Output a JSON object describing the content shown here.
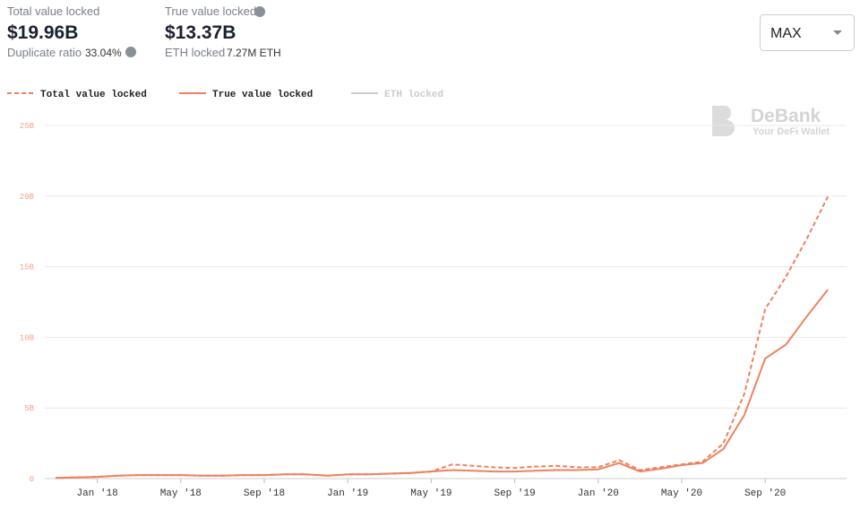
{
  "header": {
    "total_label": "Total value locked",
    "total_value": "$19.96B",
    "dup_label": "Duplicate ratio",
    "dup_value": "33.04%",
    "true_label": "True value locked",
    "true_value": "$13.37B",
    "eth_label": "ETH locked",
    "eth_value": "7.27M ETH",
    "range": "MAX",
    "brand": "DeBank",
    "brand_sub": "Your DeFi Wallet"
  },
  "chart_data": {
    "type": "line",
    "x": [
      "2017-11",
      "2017-12",
      "2018-01",
      "2018-02",
      "2018-03",
      "2018-04",
      "2018-05",
      "2018-06",
      "2018-07",
      "2018-08",
      "2018-09",
      "2018-10",
      "2018-11",
      "2018-12",
      "2019-01",
      "2019-02",
      "2019-03",
      "2019-04",
      "2019-05",
      "2019-06",
      "2019-07",
      "2019-08",
      "2019-09",
      "2019-10",
      "2019-11",
      "2019-12",
      "2020-01",
      "2020-02",
      "2020-03",
      "2020-04",
      "2020-05",
      "2020-06",
      "2020-07",
      "2020-08",
      "2020-09",
      "2020-10",
      "2020-11",
      "2020-12"
    ],
    "series": [
      {
        "name": "Total value locked",
        "color": "#ef8160",
        "dashed": true,
        "values": [
          0.05,
          0.08,
          0.12,
          0.2,
          0.25,
          0.25,
          0.25,
          0.2,
          0.2,
          0.25,
          0.25,
          0.3,
          0.3,
          0.2,
          0.3,
          0.3,
          0.35,
          0.4,
          0.5,
          1.0,
          0.9,
          0.8,
          0.75,
          0.85,
          0.9,
          0.8,
          0.8,
          1.3,
          0.6,
          0.8,
          1.0,
          1.2,
          2.5,
          6.0,
          12.0,
          14.3,
          17.0,
          19.96
        ]
      },
      {
        "name": "True value locked",
        "color": "#ef8160",
        "dashed": false,
        "values": [
          0.05,
          0.08,
          0.12,
          0.2,
          0.25,
          0.25,
          0.25,
          0.2,
          0.2,
          0.25,
          0.25,
          0.3,
          0.3,
          0.2,
          0.3,
          0.3,
          0.35,
          0.4,
          0.5,
          0.6,
          0.55,
          0.5,
          0.5,
          0.55,
          0.6,
          0.6,
          0.65,
          1.1,
          0.5,
          0.7,
          0.95,
          1.1,
          2.1,
          4.5,
          8.5,
          9.5,
          11.5,
          13.37
        ]
      }
    ],
    "hidden_series": [
      {
        "name": "ETH locked",
        "color": "#cccccc"
      }
    ],
    "ylim": [
      0,
      25
    ],
    "yticks": [
      {
        "value": 0,
        "label": "0"
      },
      {
        "value": 5,
        "label": "5B"
      },
      {
        "value": 10,
        "label": "10B"
      },
      {
        "value": 15,
        "label": "15B"
      },
      {
        "value": 20,
        "label": "20B"
      },
      {
        "value": 25,
        "label": "25B"
      }
    ],
    "xticks": [
      {
        "value": "2018-01",
        "label": "Jan '18"
      },
      {
        "value": "2018-05",
        "label": "May '18"
      },
      {
        "value": "2018-09",
        "label": "Sep '18"
      },
      {
        "value": "2019-01",
        "label": "Jan '19"
      },
      {
        "value": "2019-05",
        "label": "May '19"
      },
      {
        "value": "2019-09",
        "label": "Sep '19"
      },
      {
        "value": "2020-01",
        "label": "Jan '20"
      },
      {
        "value": "2020-05",
        "label": "May '20"
      },
      {
        "value": "2020-09",
        "label": "Sep '20"
      }
    ],
    "grid": true
  }
}
